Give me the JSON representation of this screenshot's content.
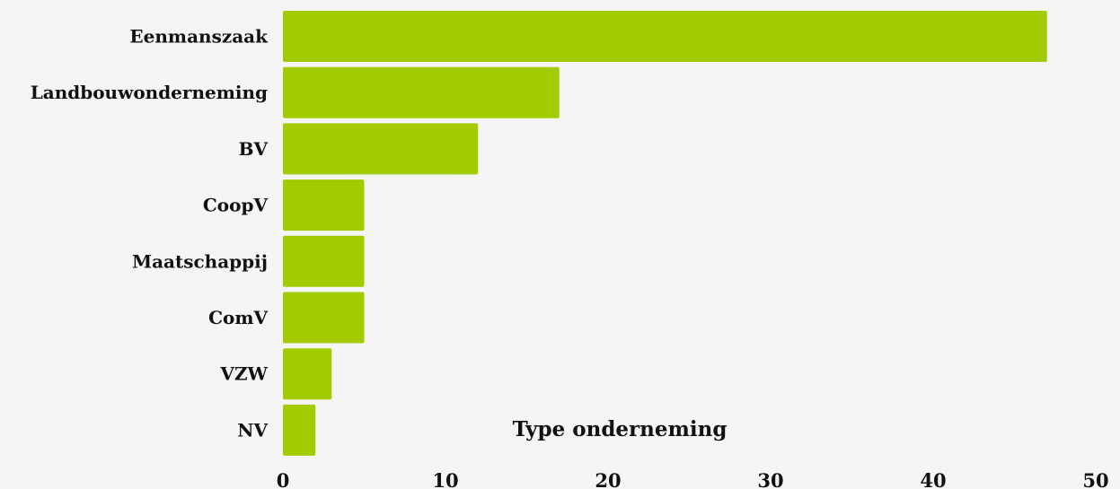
{
  "colors": {
    "background": "#f5f5f5",
    "bar": "#a3cc00",
    "text": "#111111"
  },
  "chart_data": {
    "type": "bar",
    "orientation": "horizontal",
    "categories": [
      "Eenmanszaak",
      "Landbouwonderneming",
      "BV",
      "CoopV",
      "Maatschappij",
      "ComV",
      "VZW",
      "NV"
    ],
    "values": [
      47,
      17,
      12,
      5,
      5,
      5,
      3,
      2
    ],
    "xlabel": "Type onderneming",
    "ylabel": "",
    "xlim": [
      0,
      50
    ],
    "xticks": [
      0,
      10,
      20,
      30,
      40,
      50
    ],
    "grid": false,
    "legend": "none"
  }
}
